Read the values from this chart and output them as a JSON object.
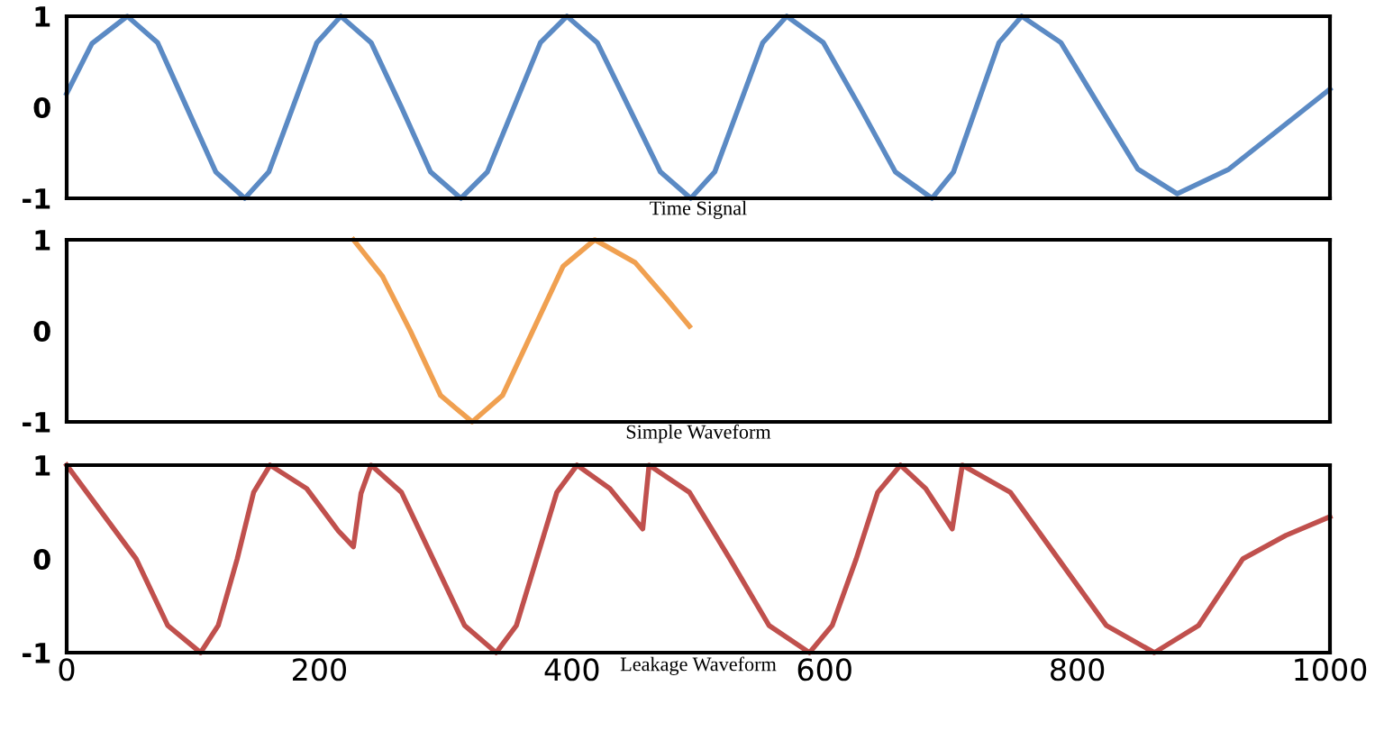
{
  "chart_data": [
    {
      "type": "line",
      "xlabel": "Time Signal",
      "xlim": [
        0,
        1000
      ],
      "xticks": [
        0,
        200,
        400,
        600,
        800,
        1000
      ],
      "ylim": [
        -1,
        1
      ],
      "yticks": [
        -1,
        0,
        1
      ],
      "tick_labels": "y",
      "x": [
        0,
        20,
        48,
        72,
        95,
        118,
        141,
        160,
        179,
        198,
        217,
        241,
        265,
        288,
        312,
        333,
        354,
        375,
        396,
        420,
        445,
        470,
        494,
        513,
        532,
        551,
        570,
        599,
        628,
        656,
        685,
        702,
        720,
        738,
        756,
        787,
        818,
        848,
        879,
        920,
        1000
      ],
      "series": [
        {
          "color": "#5b8ac4",
          "values": [
            0.15,
            0.7,
            1,
            0.71,
            0,
            -0.71,
            -1,
            -0.71,
            0,
            0.71,
            1,
            0.71,
            0,
            -0.71,
            -1,
            -0.71,
            0,
            0.71,
            1,
            0.71,
            0,
            -0.71,
            -1,
            -0.71,
            0,
            0.71,
            1,
            0.71,
            0,
            -0.71,
            -1,
            -0.71,
            0,
            0.71,
            1,
            0.71,
            0,
            -0.68,
            -0.95,
            -0.68,
            0.2
          ]
        }
      ]
    },
    {
      "type": "line",
      "xlabel": "Simple Waveform",
      "xlim": [
        0,
        1000
      ],
      "xticks": [
        0,
        200,
        400,
        600,
        800,
        1000
      ],
      "ylim": [
        -1,
        1
      ],
      "yticks": [
        -1,
        0,
        1
      ],
      "tick_labels": "y",
      "x": [
        227,
        250,
        272,
        296,
        321,
        345,
        369,
        393,
        418,
        450,
        475,
        493
      ],
      "series": [
        {
          "color": "#f0a050",
          "values": [
            1,
            0.6,
            0,
            -0.71,
            -1,
            -0.71,
            0,
            0.71,
            1,
            0.75,
            0.35,
            0.05
          ]
        }
      ]
    },
    {
      "type": "line",
      "xlabel": "Leakage Waveform",
      "xlim": [
        0,
        1000
      ],
      "xticks": [
        0,
        200,
        400,
        600,
        800,
        1000
      ],
      "ylim": [
        -1,
        1
      ],
      "yticks": [
        -1,
        0,
        1
      ],
      "x": [
        0,
        55,
        80,
        106,
        120,
        135,
        148,
        161,
        190,
        215,
        227,
        233,
        241,
        265,
        290,
        315,
        340,
        356,
        372,
        388,
        404,
        430,
        456,
        461,
        493,
        525,
        556,
        588,
        606,
        625,
        642,
        660,
        680,
        701,
        709,
        747,
        785,
        823,
        861,
        896,
        931,
        965,
        1000
      ],
      "series": [
        {
          "color": "#c0504d",
          "values": [
            1,
            0,
            -0.71,
            -1,
            -0.71,
            0,
            0.71,
            1,
            0.75,
            0.3,
            0.13,
            0.7,
            1,
            0.71,
            0,
            -0.71,
            -1,
            -0.71,
            0,
            0.71,
            1,
            0.75,
            0.32,
            1,
            0.71,
            0,
            -0.71,
            -1,
            -0.71,
            0,
            0.71,
            1,
            0.75,
            0.32,
            1,
            0.71,
            0,
            -0.71,
            -1,
            -0.71,
            0,
            0.25,
            0.45
          ]
        }
      ]
    }
  ]
}
